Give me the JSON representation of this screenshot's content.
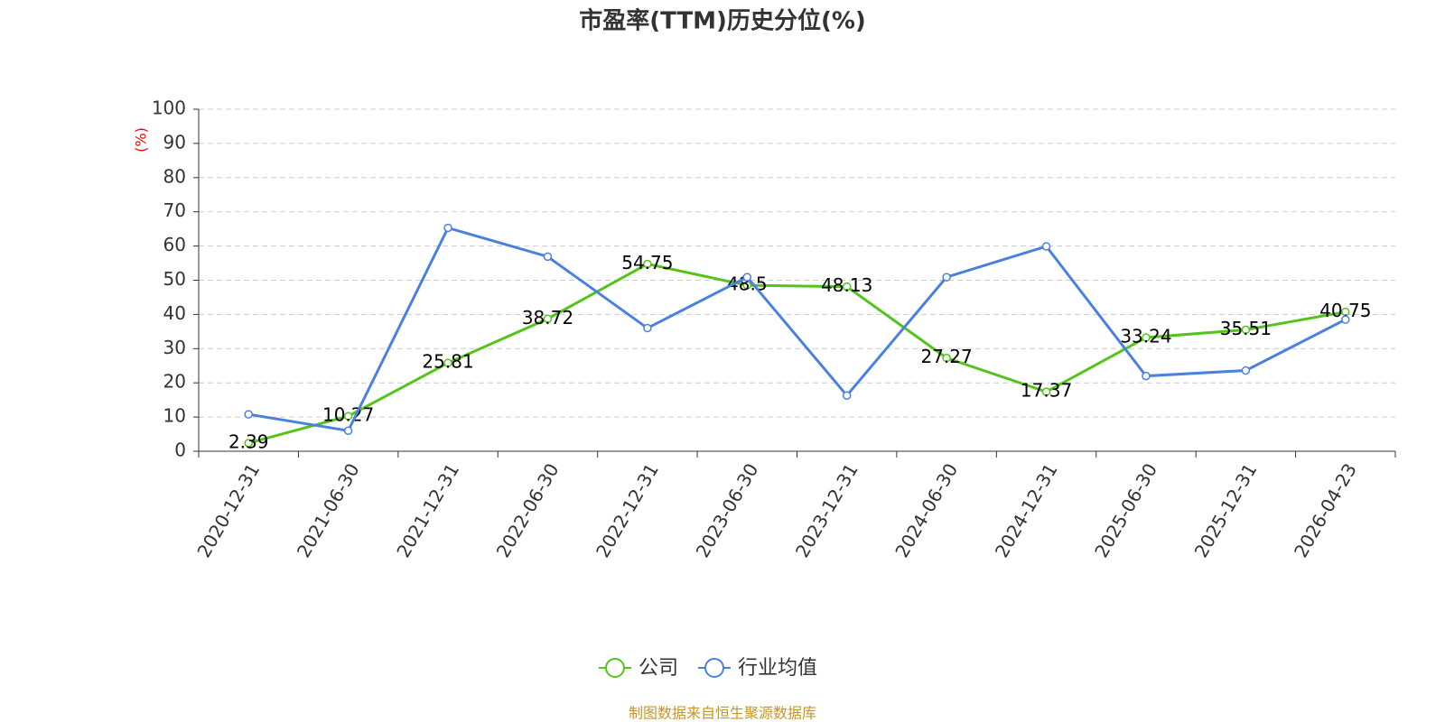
{
  "chart_data": {
    "type": "line",
    "title": "市盈率(TTM)历史分位(%)",
    "y_label": "(%)",
    "source": "制图数据来自恒生聚源数据库",
    "categories": [
      "2020-12-31",
      "2021-06-30",
      "2021-12-31",
      "2022-06-30",
      "2022-12-31",
      "2023-06-30",
      "2023-12-31",
      "2024-06-30",
      "2024-12-31",
      "2025-06-30",
      "2025-12-31",
      "2026-04-23"
    ],
    "series": [
      {
        "name": "公司",
        "color": "#52c41a",
        "show_labels": true,
        "values": [
          2.39,
          10.27,
          25.81,
          38.72,
          54.75,
          48.5,
          48.13,
          27.27,
          17.37,
          33.24,
          35.51,
          40.75
        ]
      },
      {
        "name": "行业均值",
        "color": "#4a80e0",
        "show_labels": false,
        "values": [
          10.8,
          6.0,
          65.3,
          56.9,
          36.0,
          50.9,
          16.3,
          50.9,
          59.9,
          22.0,
          23.6,
          38.5
        ]
      }
    ],
    "ylim": [
      0,
      100
    ],
    "yticks": [
      0,
      10,
      20,
      30,
      40,
      50,
      60,
      70,
      80,
      90,
      100
    ],
    "grid": true
  }
}
